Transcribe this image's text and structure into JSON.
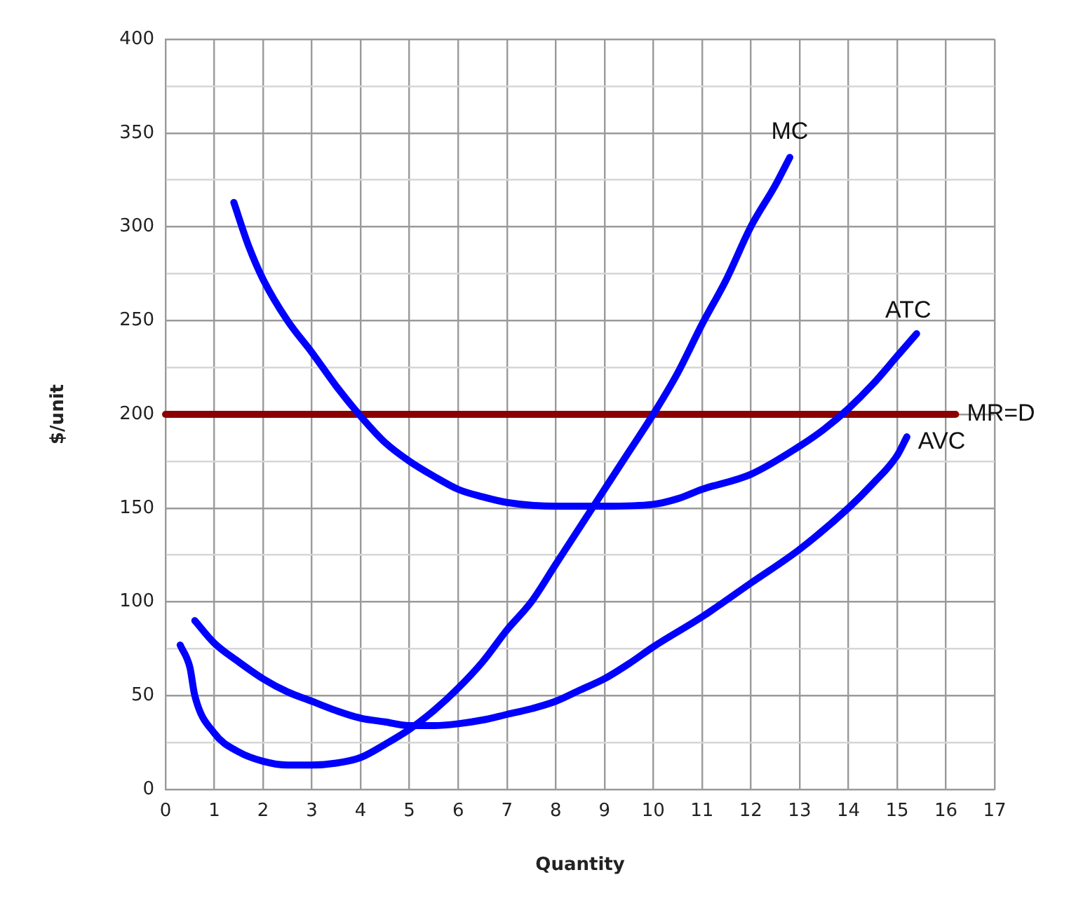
{
  "chart_data": {
    "type": "line",
    "xlabel": "Quantity",
    "ylabel": "$/unit",
    "xlim": [
      0,
      17
    ],
    "xticks": [
      0,
      1,
      2,
      3,
      4,
      5,
      6,
      7,
      8,
      9,
      10,
      11,
      12,
      13,
      14,
      15,
      16,
      17
    ],
    "ylim": [
      0,
      400
    ],
    "yticks": [
      0,
      {
        "value": 25,
        "label": null
      },
      50,
      {
        "value": 75,
        "label": null
      },
      100,
      {
        "value": 125,
        "label": null
      },
      150,
      {
        "value": 175,
        "label": null
      },
      200,
      {
        "value": 225,
        "label": null
      },
      250,
      {
        "value": 275,
        "label": null
      },
      300,
      {
        "value": 325,
        "label": null
      },
      350,
      {
        "value": 375,
        "label": null
      },
      400
    ],
    "grid": true,
    "legend": false,
    "marker": "none",
    "line_style": "solid",
    "series": [
      {
        "name": "MC",
        "color": "#0000ff",
        "x": [
          0.3,
          0.5,
          0.6,
          1,
          1.5,
          2,
          2.5,
          3,
          3.5,
          4,
          4.5,
          5,
          5.5,
          6,
          6.5,
          7,
          7.5,
          8,
          8.5,
          9,
          9.5,
          10,
          10.5,
          11,
          11.5,
          12,
          12.5,
          12.8
        ],
        "values": [
          77,
          65,
          50,
          30,
          20,
          15,
          13,
          13,
          14,
          17,
          24,
          32,
          42,
          54,
          68,
          85,
          100,
          120,
          140,
          160,
          180,
          200,
          222,
          248,
          272,
          300,
          322,
          337
        ]
      },
      {
        "name": "ATC",
        "color": "#0000ff",
        "x": [
          1.4,
          1.7,
          2,
          2.5,
          3,
          3.5,
          4,
          4.5,
          5,
          5.5,
          6,
          6.5,
          7,
          8,
          9,
          10,
          10.5,
          11,
          12,
          13,
          13.5,
          14,
          14.5,
          15,
          15.4
        ],
        "values": [
          313,
          290,
          272,
          250,
          233,
          215,
          199,
          185,
          175,
          167,
          160,
          156,
          153,
          151,
          151,
          152,
          155,
          160,
          168,
          183,
          192,
          203,
          216,
          231,
          243
        ]
      },
      {
        "name": "AVC",
        "color": "#0000ff",
        "x": [
          0.6,
          1,
          1.5,
          2,
          2.5,
          3,
          3.5,
          4,
          4.5,
          5,
          5.5,
          6,
          6.5,
          7,
          7.5,
          8,
          8.5,
          9,
          9.5,
          10,
          11,
          12,
          13,
          14,
          14.5,
          15,
          15.2
        ],
        "values": [
          90,
          78,
          68,
          59,
          52,
          47,
          42,
          38,
          36,
          34,
          34,
          35,
          37,
          40,
          43,
          47,
          53,
          59,
          67,
          76,
          92,
          110,
          128,
          150,
          163,
          178,
          188
        ]
      },
      {
        "name": "MR=D",
        "color": "#8b0000",
        "x": [
          0,
          16.2
        ],
        "values": [
          200,
          200
        ]
      }
    ]
  }
}
